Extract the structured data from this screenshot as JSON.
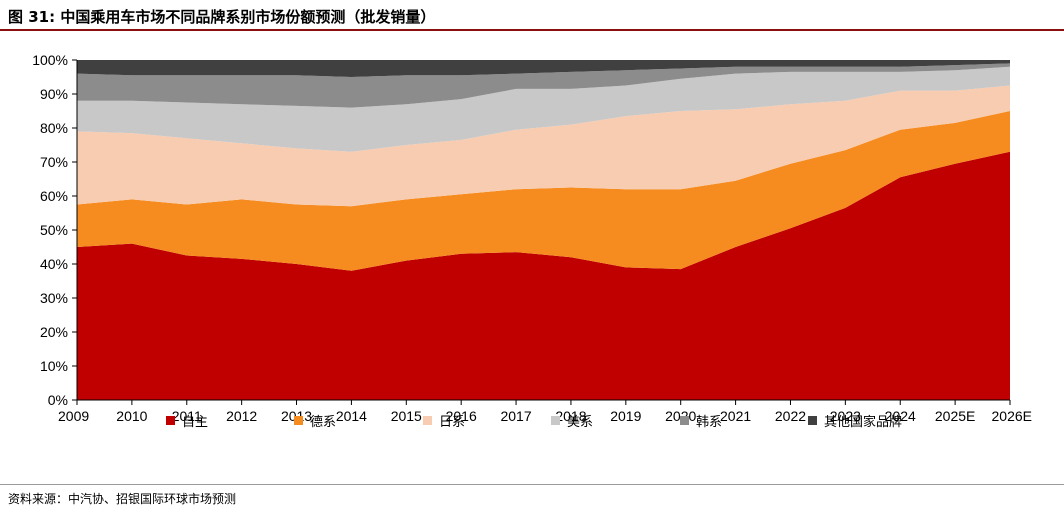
{
  "figure": {
    "title": "图 31: 中国乘用车市场不同品牌系别市场份额预测（批发销量）",
    "source": "资料来源：中汽协、招银国际环球市场预测"
  },
  "chart_data": {
    "type": "area",
    "stacked": true,
    "x": [
      "2009",
      "2010",
      "2011",
      "2012",
      "2013",
      "2014",
      "2015",
      "2016",
      "2017",
      "2018",
      "2019",
      "2020",
      "2021",
      "2022",
      "2023",
      "2024",
      "2025E",
      "2026E"
    ],
    "y_ticks": [
      "0%",
      "10%",
      "20%",
      "30%",
      "40%",
      "50%",
      "60%",
      "70%",
      "80%",
      "90%",
      "100%"
    ],
    "ylim": [
      0,
      100
    ],
    "grid": false,
    "legend_position": "bottom",
    "series": [
      {
        "name": "自主",
        "color": "#c00000",
        "values": [
          45,
          46,
          42.5,
          41.5,
          40,
          38,
          41,
          43,
          43.5,
          42,
          39,
          38.5,
          45,
          50.5,
          56.5,
          65.5,
          69.5,
          73
        ]
      },
      {
        "name": "德系",
        "color": "#f68b1f",
        "values": [
          12.5,
          13,
          15,
          17.5,
          17.5,
          19,
          18,
          17.5,
          18.5,
          20.5,
          23,
          23.5,
          19.5,
          19,
          17,
          14,
          12,
          12
        ]
      },
      {
        "name": "日系",
        "color": "#f8ccb0",
        "values": [
          21.5,
          19.5,
          19.5,
          16.5,
          16.5,
          16,
          16,
          16,
          17.5,
          18.5,
          21.5,
          23,
          21,
          17.5,
          14.5,
          11.5,
          9.5,
          7.5
        ]
      },
      {
        "name": "美系",
        "color": "#c8c8c8",
        "values": [
          9,
          9.5,
          10.5,
          11.5,
          12.5,
          13,
          12,
          12,
          12,
          10.5,
          9,
          9.5,
          10.5,
          9.5,
          8.5,
          5.5,
          6,
          5.5
        ]
      },
      {
        "name": "韩系",
        "color": "#8c8c8c",
        "values": [
          8,
          7.5,
          8,
          8.5,
          9,
          9,
          8.5,
          7,
          4.5,
          5,
          4.5,
          3,
          2,
          1.5,
          1.5,
          1.5,
          1.5,
          1
        ]
      },
      {
        "name": "其他国家品牌",
        "color": "#404040",
        "values": [
          4,
          4.5,
          4.5,
          4.5,
          4.5,
          5,
          4.5,
          4.5,
          4,
          3.5,
          3,
          2.5,
          2,
          2,
          2,
          2,
          1.5,
          1
        ]
      }
    ]
  }
}
